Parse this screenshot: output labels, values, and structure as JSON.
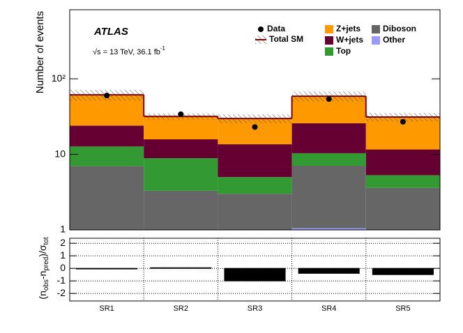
{
  "chart_data": [
    {
      "type": "stacked_histogram",
      "ylabel": "Number of events",
      "experiment": "ATLAS",
      "annotation": "√s = 13 TeV, 36.1 fb",
      "annotation_superscript": "-1",
      "log_scale": true,
      "ylim": [
        1,
        820
      ],
      "yticks": [
        1,
        10,
        {
          "value": 100,
          "label": "10²"
        }
      ],
      "series": [
        {
          "name": "Z+jets",
          "color": "#ff9900",
          "values": [
            37.3,
            16.0,
            16.2,
            33.1,
            19.6
          ]
        },
        {
          "name": "W+jets",
          "color": "#660033",
          "values": [
            11.3,
            6.9,
            8.6,
            15.4,
            6.3
          ]
        },
        {
          "name": "Top",
          "color": "#339933",
          "values": [
            5.7,
            5.6,
            2.0,
            3.3,
            1.7
          ]
        },
        {
          "name": "Diboson",
          "color": "#666666",
          "values": [
            7.0,
            3.3,
            3.0,
            6.0,
            3.6
          ]
        },
        {
          "name": "Other",
          "color": "#9999ff",
          "values": [
            0,
            0,
            0,
            1.05,
            0
          ]
        }
      ],
      "data": {
        "name": "Data",
        "color": "#000000",
        "values": [
          60,
          34,
          23,
          54,
          27
        ]
      },
      "total": {
        "name": "Total SM",
        "color": "#800000",
        "uncertainty": [
          10,
          3,
          4,
          9,
          4
        ]
      }
    },
    {
      "type": "bar",
      "ylabel": [
        "(n",
        "obs",
        "-n",
        "pred",
        ")/σ",
        "tot"
      ],
      "categories": [
        "SR1",
        "SR2",
        "SR3",
        "SR4",
        "SR5"
      ],
      "values": [
        -0.05,
        0.05,
        -1.0,
        -0.4,
        -0.5
      ],
      "color": "#000000",
      "ylim": [
        -2.6,
        2.4
      ],
      "yticks": [
        -2,
        -1,
        0,
        1,
        2
      ],
      "grid": true
    }
  ]
}
